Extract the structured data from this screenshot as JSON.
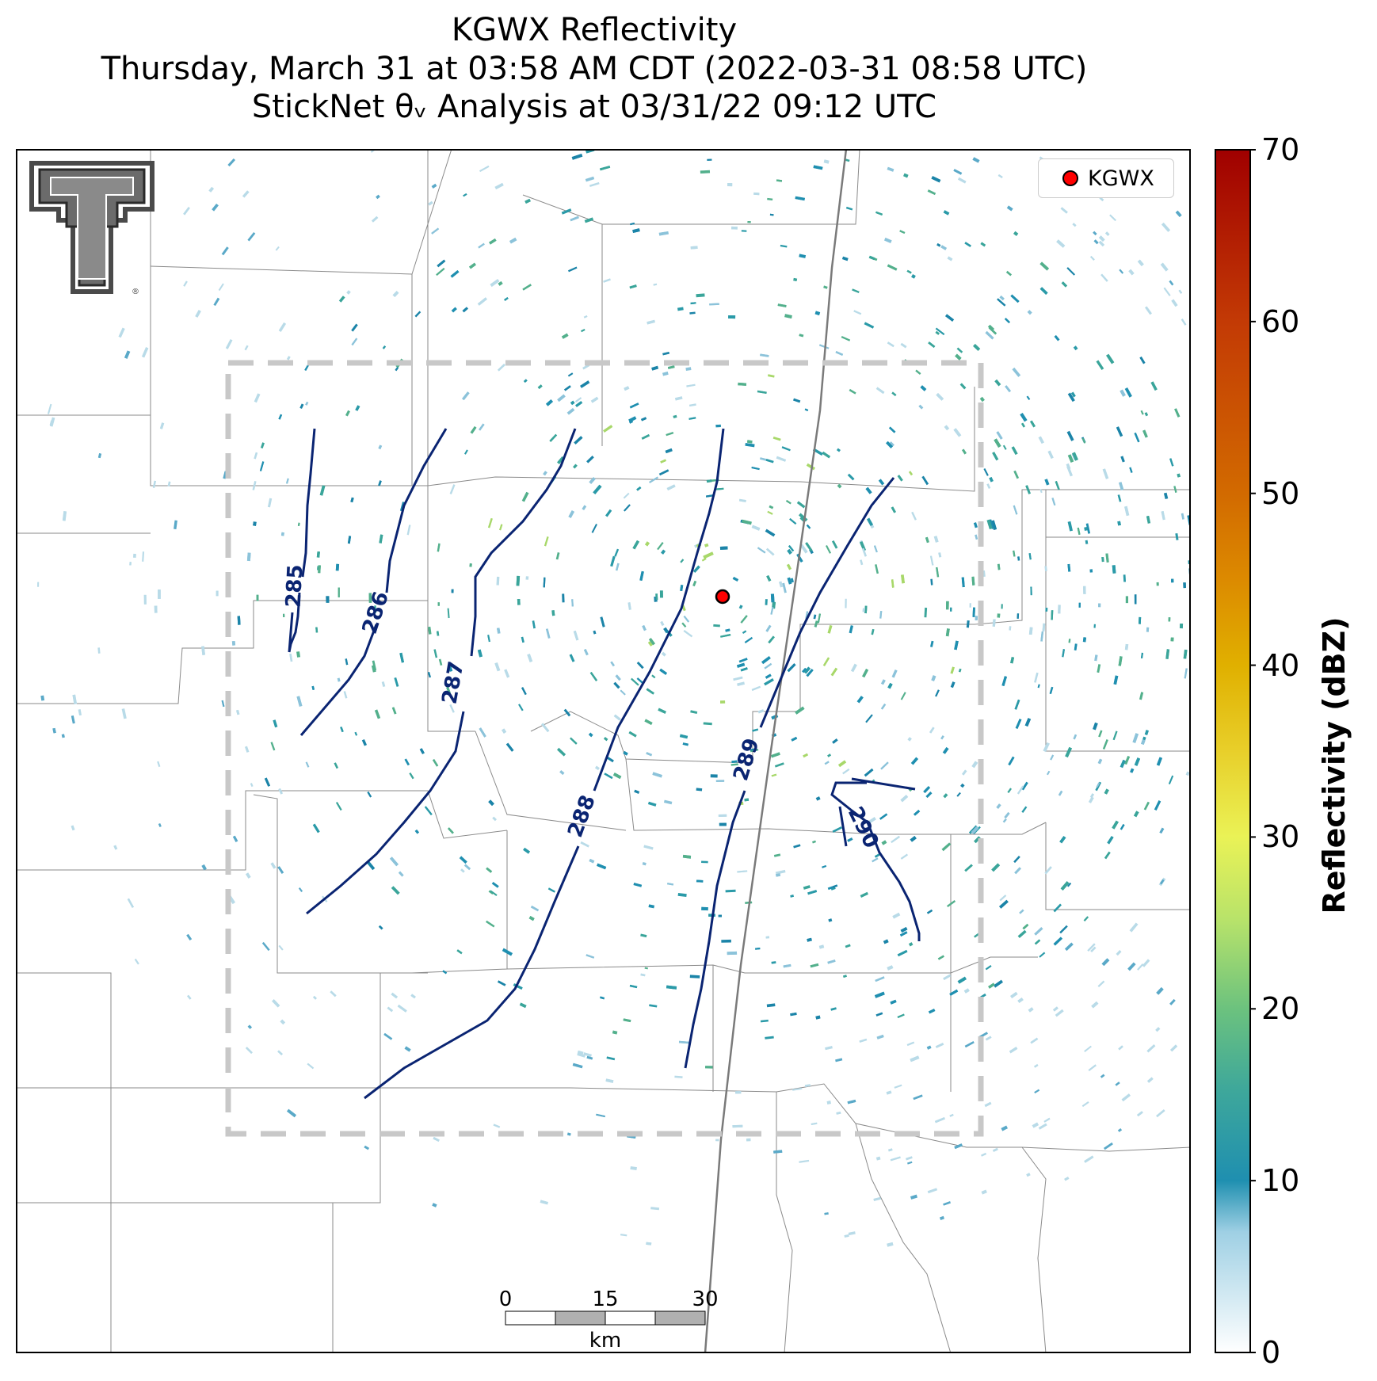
{
  "title": {
    "line1": "KGWX Reflectivity",
    "line2": "Thursday, March 31 at 03:58 AM CDT (2022-03-31 08:58 UTC)",
    "line3": "StickNet θᵥ Analysis at 03/31/22 09:12 UTC"
  },
  "legend": {
    "label": "KGWX",
    "marker_color": "#ff0000"
  },
  "colorbar": {
    "label": "Reflectivity (dBZ)",
    "min": 0,
    "max": 70,
    "ticks": [
      "0",
      "10",
      "20",
      "30",
      "40",
      "50",
      "60",
      "70"
    ],
    "colors": [
      "#ffffff",
      "#1f8fb0",
      "#5cb88c",
      "#e6f05a",
      "#e0b800",
      "#d97000",
      "#c83c00",
      "#a00000"
    ]
  },
  "contours": {
    "color": "#0a2472",
    "labels": [
      "285",
      "286",
      "287",
      "288",
      "289",
      "290"
    ]
  },
  "scale_bar": {
    "ticks": [
      "0",
      "15",
      "30"
    ],
    "unit": "km"
  },
  "logo": {
    "name": "texas-tech-double-t-logo"
  }
}
